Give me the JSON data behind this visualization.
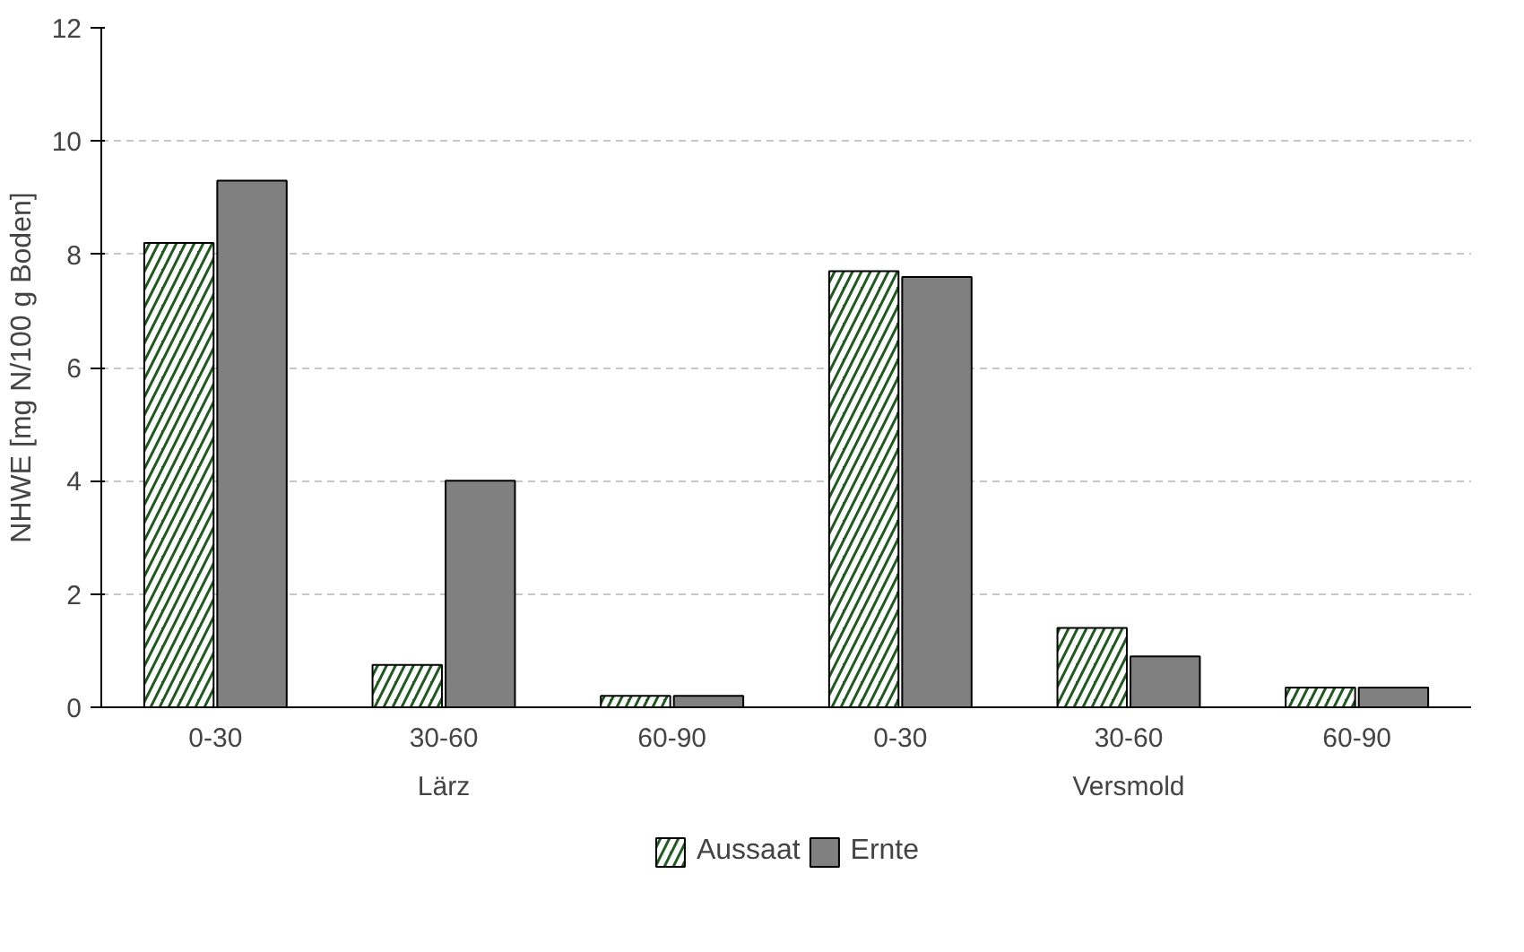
{
  "chart_data": {
    "type": "bar",
    "ylabel": "NHWE [mg N/100 g Boden]",
    "categories": [
      "0-30",
      "30-60",
      "60-90",
      "0-30",
      "30-60",
      "60-90"
    ],
    "annotations": [
      "Lärz",
      "Versmold"
    ],
    "series": [
      {
        "name": "Aussaat",
        "color": "#1e5a1e",
        "values": [
          8.2,
          0.75,
          0.2,
          7.7,
          1.4,
          0.35
        ]
      },
      {
        "name": "Ernte",
        "color": "#808080",
        "values": [
          9.3,
          4.0,
          0.2,
          7.6,
          0.9,
          0.35
        ]
      }
    ],
    "ylim": [
      0,
      12
    ],
    "yticks": [
      0,
      2,
      4,
      6,
      8,
      10,
      12
    ],
    "grid": "y",
    "legend": "bottom"
  }
}
